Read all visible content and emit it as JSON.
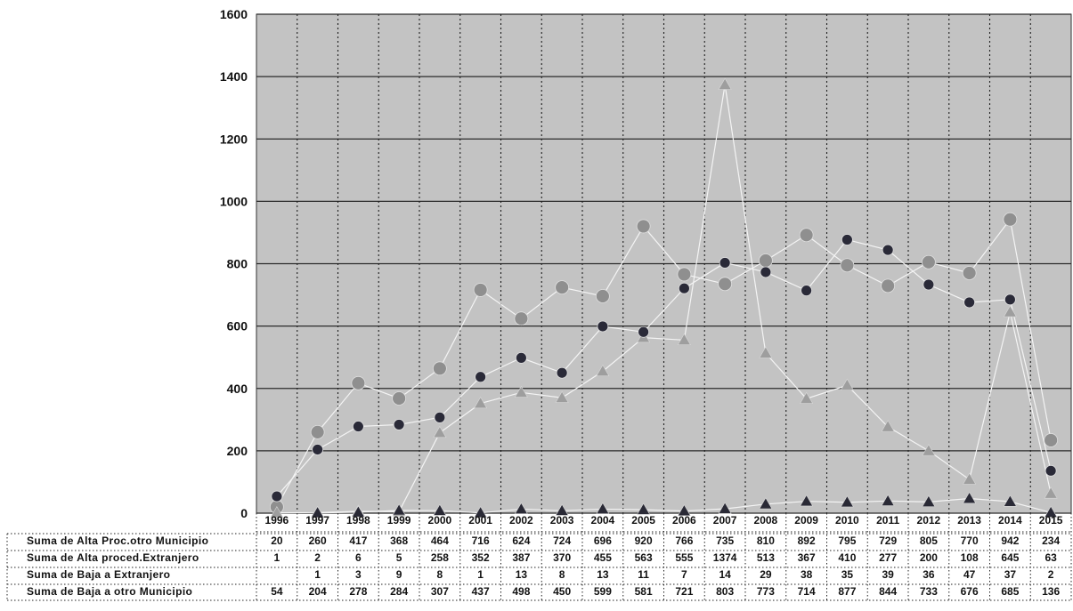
{
  "chart_data": {
    "type": "line",
    "x": [
      "1996",
      "1997",
      "1998",
      "1999",
      "2000",
      "2001",
      "2002",
      "2003",
      "2004",
      "2005",
      "2006",
      "2007",
      "2008",
      "2009",
      "2010",
      "2011",
      "2012",
      "2013",
      "2014",
      "2015"
    ],
    "yticks": [
      "0",
      "200",
      "400",
      "600",
      "800",
      "1000",
      "1200",
      "1400",
      "1600"
    ],
    "ylim": [
      0,
      1600
    ],
    "grid": true,
    "plot_background": "#c3c3c3",
    "series": [
      {
        "name": "Suma de Alta Proc.otro Municipio",
        "marker": "circle",
        "color": "#8f8f8f",
        "values": [
          20,
          260,
          417,
          368,
          464,
          716,
          624,
          724,
          696,
          920,
          766,
          735,
          810,
          892,
          795,
          729,
          805,
          770,
          942,
          234
        ]
      },
      {
        "name": "Suma de Alta proced.Extranjero",
        "marker": "triangle",
        "color": "#9e9e9e",
        "values": [
          1,
          2,
          6,
          5,
          258,
          352,
          387,
          370,
          455,
          563,
          555,
          1374,
          513,
          367,
          410,
          277,
          200,
          108,
          645,
          63
        ]
      },
      {
        "name": "Suma de Baja a Extranjero",
        "marker": "triangle",
        "color": "#2a2a36",
        "values": [
          null,
          1,
          3,
          9,
          8,
          1,
          13,
          8,
          13,
          11,
          7,
          14,
          29,
          38,
          35,
          39,
          36,
          47,
          37,
          2
        ]
      },
      {
        "name": "Suma de Baja a otro Municipio",
        "marker": "circle",
        "color": "#2a2a38",
        "values": [
          54,
          204,
          278,
          284,
          307,
          437,
          498,
          450,
          599,
          581,
          721,
          803,
          773,
          714,
          877,
          844,
          733,
          676,
          685,
          136
        ]
      }
    ],
    "table": {
      "rows": [
        {
          "label": "Suma de Alta Proc.otro Municipio",
          "cells": [
            "20",
            "260",
            "417",
            "368",
            "464",
            "716",
            "624",
            "724",
            "696",
            "920",
            "766",
            "735",
            "810",
            "892",
            "795",
            "729",
            "805",
            "770",
            "942",
            "234"
          ]
        },
        {
          "label": "Suma de Alta proced.Extranjero",
          "cells": [
            "1",
            "2",
            "6",
            "5",
            "258",
            "352",
            "387",
            "370",
            "455",
            "563",
            "555",
            "1374",
            "513",
            "367",
            "410",
            "277",
            "200",
            "108",
            "645",
            "63"
          ]
        },
        {
          "label": "Suma de Baja a Extranjero",
          "cells": [
            "",
            "1",
            "3",
            "9",
            "8",
            "1",
            "13",
            "8",
            "13",
            "11",
            "7",
            "14",
            "29",
            "38",
            "35",
            "39",
            "36",
            "47",
            "37",
            "2"
          ]
        },
        {
          "label": "Suma de Baja a otro Municipio",
          "cells": [
            "54",
            "204",
            "278",
            "284",
            "307",
            "437",
            "498",
            "450",
            "599",
            "581",
            "721",
            "803",
            "773",
            "714",
            "877",
            "844",
            "733",
            "676",
            "685",
            "136"
          ]
        }
      ]
    }
  }
}
